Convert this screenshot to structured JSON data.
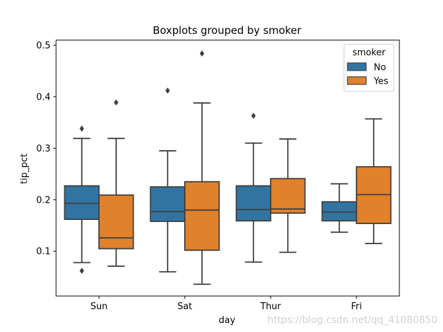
{
  "chart_data": {
    "type": "boxplot",
    "title": "Boxplots grouped by smoker",
    "xlabel": "day",
    "ylabel": "tip_pct",
    "ylim": [
      0.013,
      0.51
    ],
    "yticks": [
      0.1,
      0.2,
      0.3,
      0.4,
      0.5
    ],
    "ytick_labels": [
      "0.1",
      "0.2",
      "0.3",
      "0.4",
      "0.5"
    ],
    "categories": [
      "Sun",
      "Sat",
      "Thur",
      "Fri"
    ],
    "legend": {
      "title": "smoker",
      "position": "top-right",
      "entries": [
        "No",
        "Yes"
      ]
    },
    "series": [
      {
        "name": "No",
        "color": "#3274a1",
        "boxes": [
          {
            "category": "Sun",
            "whisker_low": 0.078,
            "q1": 0.162,
            "median": 0.193,
            "q3": 0.227,
            "whisker_high": 0.319,
            "outliers": [
              0.338,
              0.062
            ]
          },
          {
            "category": "Sat",
            "whisker_low": 0.06,
            "q1": 0.158,
            "median": 0.177,
            "q3": 0.225,
            "whisker_high": 0.295,
            "outliers": [
              0.412
            ]
          },
          {
            "category": "Thur",
            "whisker_low": 0.079,
            "q1": 0.159,
            "median": 0.181,
            "q3": 0.227,
            "whisker_high": 0.31,
            "outliers": [
              0.363
            ]
          },
          {
            "category": "Fri",
            "whisker_low": 0.137,
            "q1": 0.159,
            "median": 0.176,
            "q3": 0.196,
            "whisker_high": 0.231,
            "outliers": []
          }
        ]
      },
      {
        "name": "Yes",
        "color": "#e1812c",
        "boxes": [
          {
            "category": "Sun",
            "whisker_low": 0.071,
            "q1": 0.105,
            "median": 0.126,
            "q3": 0.209,
            "whisker_high": 0.319,
            "outliers": [
              0.389
            ]
          },
          {
            "category": "Sat",
            "whisker_low": 0.036,
            "q1": 0.102,
            "median": 0.18,
            "q3": 0.235,
            "whisker_high": 0.388,
            "outliers": [
              0.484
            ]
          },
          {
            "category": "Thur",
            "whisker_low": 0.098,
            "q1": 0.174,
            "median": 0.182,
            "q3": 0.241,
            "whisker_high": 0.318,
            "outliers": []
          },
          {
            "category": "Fri",
            "whisker_low": 0.115,
            "q1": 0.154,
            "median": 0.21,
            "q3": 0.264,
            "whisker_high": 0.357,
            "outliers": []
          }
        ]
      }
    ]
  },
  "watermark": "https://blog.csdn.net/qq_41080850",
  "colors": {
    "box_edge": "#3f3f3f",
    "axis": "#000000"
  }
}
